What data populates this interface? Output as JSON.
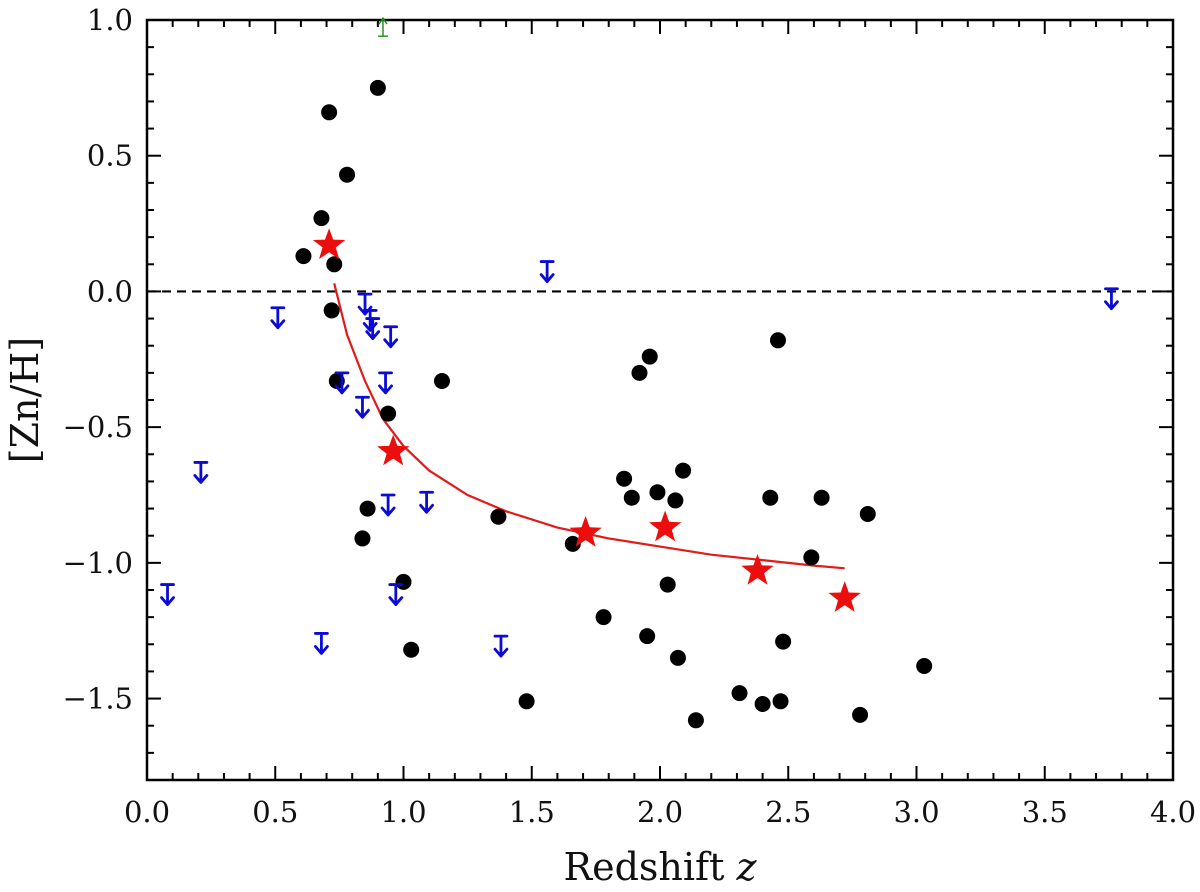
{
  "chart_data": {
    "type": "scatter",
    "title": "",
    "xlabel": "Redshift",
    "xlabel_var": "z",
    "ylabel": "[Zn/H]",
    "xlim": [
      0.0,
      4.0
    ],
    "ylim": [
      -1.8,
      1.0
    ],
    "xticks": [
      "0.0",
      "0.5",
      "1.0",
      "1.5",
      "2.0",
      "2.5",
      "3.0",
      "3.5",
      "4.0"
    ],
    "yticks": [
      "1.0",
      "0.5",
      "0.0",
      "−0.5",
      "−1.0",
      "−1.5"
    ],
    "reference_line": {
      "y": 0.0,
      "style": "dashed",
      "color": "#000000"
    },
    "series": [
      {
        "name": "detections",
        "marker": "circle",
        "color": "#000000",
        "points": [
          [
            0.9,
            0.75
          ],
          [
            0.71,
            0.66
          ],
          [
            0.78,
            0.43
          ],
          [
            0.68,
            0.27
          ],
          [
            0.61,
            0.13
          ],
          [
            0.73,
            0.1
          ],
          [
            0.72,
            -0.07
          ],
          [
            0.74,
            -0.33
          ],
          [
            0.94,
            -0.45
          ],
          [
            1.15,
            -0.33
          ],
          [
            0.86,
            -0.8
          ],
          [
            0.84,
            -0.91
          ],
          [
            1.0,
            -1.07
          ],
          [
            1.03,
            -1.32
          ],
          [
            1.37,
            -0.83
          ],
          [
            1.48,
            -1.51
          ],
          [
            1.66,
            -0.93
          ],
          [
            1.78,
            -1.2
          ],
          [
            1.86,
            -0.69
          ],
          [
            1.89,
            -0.76
          ],
          [
            1.92,
            -0.3
          ],
          [
            1.96,
            -0.24
          ],
          [
            1.99,
            -0.74
          ],
          [
            2.03,
            -1.08
          ],
          [
            2.06,
            -0.77
          ],
          [
            2.09,
            -0.66
          ],
          [
            1.95,
            -1.27
          ],
          [
            2.07,
            -1.35
          ],
          [
            2.14,
            -1.58
          ],
          [
            2.31,
            -1.48
          ],
          [
            2.4,
            -1.52
          ],
          [
            2.43,
            -0.76
          ],
          [
            2.46,
            -0.18
          ],
          [
            2.47,
            -1.51
          ],
          [
            2.48,
            -1.29
          ],
          [
            2.59,
            -0.98
          ],
          [
            2.63,
            -0.76
          ],
          [
            2.78,
            -1.56
          ],
          [
            2.81,
            -0.82
          ],
          [
            3.03,
            -1.38
          ]
        ]
      },
      {
        "name": "upper limits",
        "marker": "down-arrow",
        "color": "#0b0bd6",
        "points": [
          [
            0.08,
            -1.08
          ],
          [
            0.21,
            -0.63
          ],
          [
            0.51,
            -0.06
          ],
          [
            0.68,
            -1.26
          ],
          [
            0.76,
            -0.3
          ],
          [
            0.84,
            -0.39
          ],
          [
            0.85,
            -0.01
          ],
          [
            0.87,
            -0.07
          ],
          [
            0.88,
            -0.1
          ],
          [
            0.93,
            -0.3
          ],
          [
            0.94,
            -0.75
          ],
          [
            0.95,
            -0.13
          ],
          [
            0.97,
            -1.08
          ],
          [
            1.09,
            -0.74
          ],
          [
            1.38,
            -1.27
          ],
          [
            1.56,
            0.11
          ],
          [
            3.76,
            0.01
          ]
        ]
      },
      {
        "name": "lower limit",
        "marker": "up-arrow",
        "color": "#1a8a1a",
        "points": [
          [
            0.92,
            0.97
          ]
        ]
      },
      {
        "name": "binned means",
        "marker": "star",
        "color": "#ec0d0d",
        "points": [
          [
            0.71,
            0.17
          ],
          [
            0.96,
            -0.59
          ],
          [
            1.71,
            -0.89
          ],
          [
            2.02,
            -0.87
          ],
          [
            2.38,
            -1.03
          ],
          [
            2.72,
            -1.13
          ]
        ]
      },
      {
        "name": "fit",
        "marker": "line",
        "color": "#e31a1a",
        "points": [
          [
            0.73,
            0.03
          ],
          [
            0.78,
            -0.16
          ],
          [
            0.85,
            -0.33
          ],
          [
            0.92,
            -0.47
          ],
          [
            1.0,
            -0.57
          ],
          [
            1.1,
            -0.66
          ],
          [
            1.25,
            -0.75
          ],
          [
            1.4,
            -0.81
          ],
          [
            1.6,
            -0.87
          ],
          [
            1.8,
            -0.91
          ],
          [
            2.0,
            -0.94
          ],
          [
            2.2,
            -0.97
          ],
          [
            2.4,
            -0.99
          ],
          [
            2.6,
            -1.01
          ],
          [
            2.72,
            -1.02
          ]
        ]
      }
    ]
  }
}
